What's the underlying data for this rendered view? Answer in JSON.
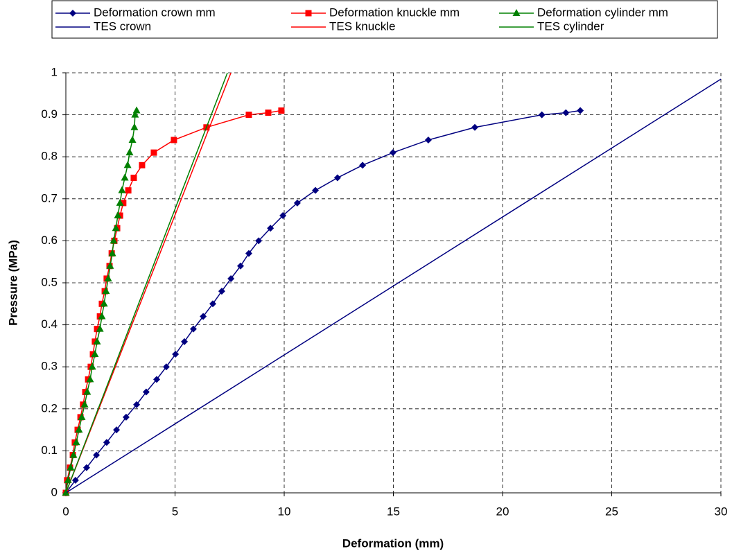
{
  "chart_data": {
    "type": "line",
    "xlabel": "Deformation (mm)",
    "ylabel": "Pressure (MPa)",
    "xlim": [
      0,
      30
    ],
    "ylim": [
      0,
      1
    ],
    "xticks": [
      0,
      5,
      10,
      15,
      20,
      25,
      30
    ],
    "yticks": [
      0,
      0.1,
      0.2,
      0.3,
      0.4,
      0.5,
      0.6,
      0.7,
      0.8,
      0.9,
      1
    ],
    "grid": true,
    "legend": "top",
    "series": [
      {
        "name": "Deformation crown mm",
        "color": "#000080",
        "marker": "diamond",
        "x": [
          0,
          0.44,
          0.95,
          1.4,
          1.87,
          2.32,
          2.76,
          3.24,
          3.68,
          4.16,
          4.6,
          5.02,
          5.43,
          5.84,
          6.29,
          6.73,
          7.14,
          7.56,
          8.0,
          8.38,
          8.83,
          9.37,
          9.94,
          10.6,
          11.43,
          12.44,
          13.59,
          14.98,
          16.6,
          18.73,
          21.8,
          22.9,
          23.56
        ],
        "values": [
          0,
          0.03,
          0.06,
          0.09,
          0.12,
          0.15,
          0.18,
          0.21,
          0.24,
          0.27,
          0.3,
          0.33,
          0.36,
          0.39,
          0.42,
          0.45,
          0.48,
          0.51,
          0.54,
          0.57,
          0.6,
          0.63,
          0.66,
          0.69,
          0.72,
          0.75,
          0.78,
          0.81,
          0.84,
          0.87,
          0.9,
          0.905,
          0.91
        ]
      },
      {
        "name": "Deformation knuckle mm",
        "color": "#ff0000",
        "marker": "square",
        "x": [
          0,
          0.06,
          0.19,
          0.32,
          0.41,
          0.54,
          0.67,
          0.79,
          0.89,
          1.02,
          1.14,
          1.24,
          1.33,
          1.43,
          1.56,
          1.65,
          1.78,
          1.87,
          2.0,
          2.1,
          2.22,
          2.35,
          2.48,
          2.63,
          2.86,
          3.11,
          3.49,
          4.03,
          4.95,
          6.44,
          8.38,
          9.27,
          9.87
        ],
        "values": [
          0,
          0.03,
          0.06,
          0.09,
          0.12,
          0.15,
          0.18,
          0.21,
          0.24,
          0.27,
          0.3,
          0.33,
          0.36,
          0.39,
          0.42,
          0.45,
          0.48,
          0.51,
          0.54,
          0.57,
          0.6,
          0.63,
          0.66,
          0.69,
          0.72,
          0.75,
          0.78,
          0.81,
          0.84,
          0.87,
          0.9,
          0.905,
          0.91
        ]
      },
      {
        "name": "Deformation cylinder mm",
        "color": "#008000",
        "marker": "triangle",
        "x": [
          0,
          0.1,
          0.22,
          0.35,
          0.48,
          0.6,
          0.73,
          0.86,
          0.98,
          1.11,
          1.21,
          1.33,
          1.43,
          1.56,
          1.65,
          1.75,
          1.84,
          1.94,
          2.03,
          2.13,
          2.19,
          2.29,
          2.38,
          2.48,
          2.57,
          2.7,
          2.83,
          2.92,
          3.05,
          3.14,
          3.17,
          3.24
        ],
        "values": [
          0,
          0.03,
          0.06,
          0.09,
          0.12,
          0.15,
          0.18,
          0.21,
          0.24,
          0.27,
          0.3,
          0.33,
          0.36,
          0.39,
          0.42,
          0.45,
          0.48,
          0.51,
          0.54,
          0.57,
          0.6,
          0.63,
          0.66,
          0.69,
          0.72,
          0.75,
          0.78,
          0.81,
          0.84,
          0.87,
          0.9,
          0.91
        ]
      },
      {
        "name": "TES crown",
        "color": "#000080",
        "x": [
          0,
          30
        ],
        "values": [
          0,
          0.985
        ]
      },
      {
        "name": "TES knuckle",
        "color": "#ff0000",
        "x": [
          0,
          7.56
        ],
        "values": [
          0,
          1
        ]
      },
      {
        "name": "TES cylinder",
        "color": "#008000",
        "x": [
          0,
          7.4
        ],
        "values": [
          0,
          1
        ]
      }
    ]
  }
}
